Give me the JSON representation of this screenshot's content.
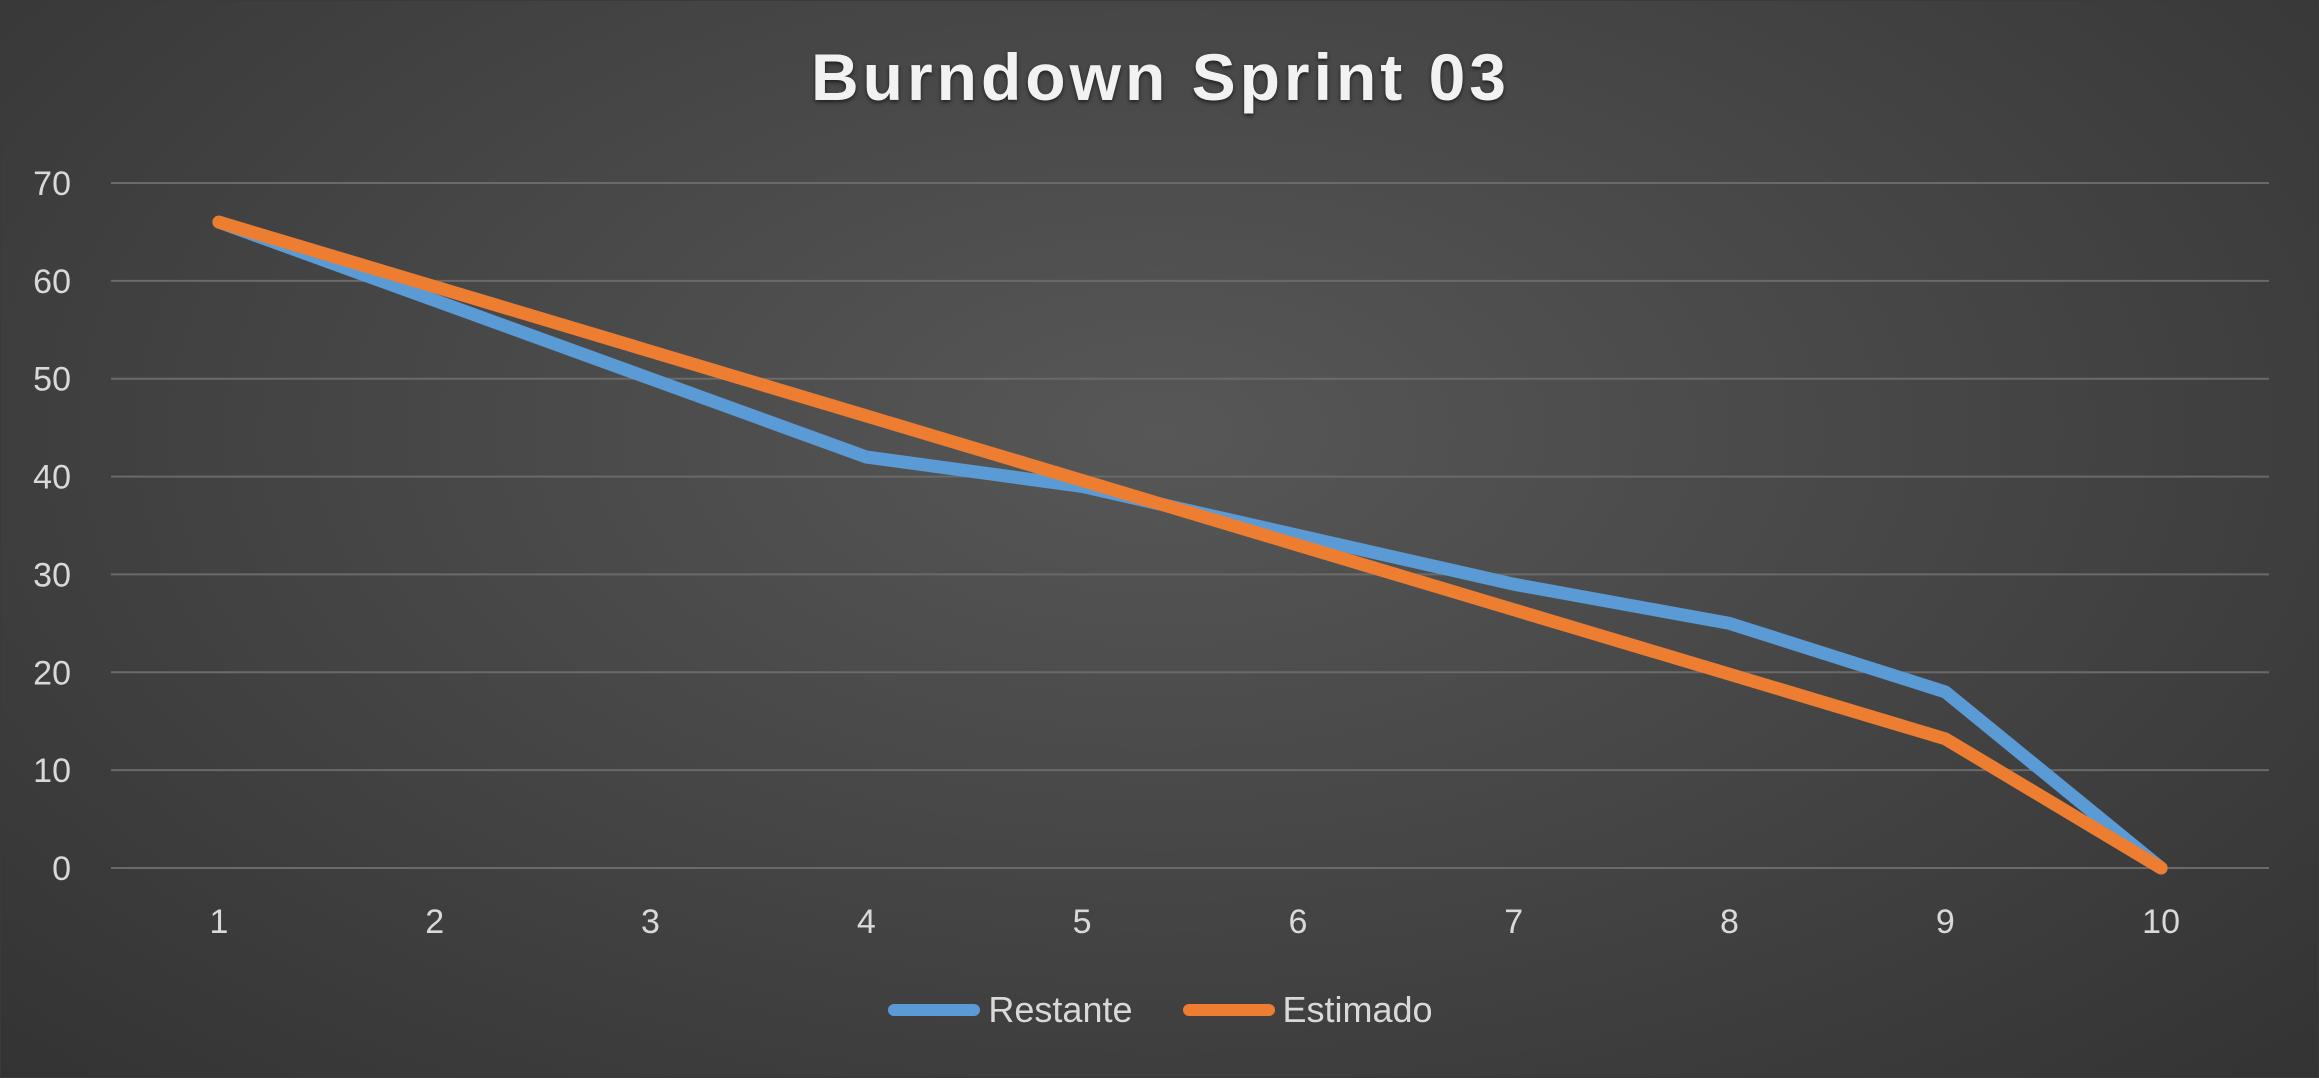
{
  "chart_data": {
    "type": "line",
    "title": "Burndown Sprint 03",
    "xlabel": "",
    "ylabel": "",
    "categories": [
      "1",
      "2",
      "3",
      "4",
      "5",
      "6",
      "7",
      "8",
      "9",
      "10"
    ],
    "y_ticks": [
      "0",
      "10",
      "20",
      "30",
      "40",
      "50",
      "60",
      "70"
    ],
    "ylim": [
      0,
      70
    ],
    "grid": true,
    "legend_position": "bottom",
    "series": [
      {
        "name": "Restante",
        "color": "#5b9bd5",
        "values": [
          66,
          58,
          50,
          42,
          39,
          34,
          29,
          25,
          18,
          0
        ]
      },
      {
        "name": "Estimado",
        "color": "#ed7d31",
        "values": [
          66,
          59.4,
          52.8,
          46.2,
          39.6,
          33,
          26.4,
          19.8,
          13.2,
          0
        ]
      }
    ]
  }
}
